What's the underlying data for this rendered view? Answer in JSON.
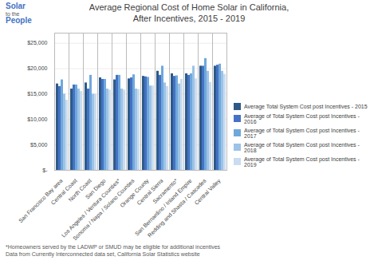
{
  "chart_data": {
    "type": "bar",
    "title": "Average Regional Cost of Home Solar in California,\nAfter Incentives, 2015 - 2019",
    "categories": [
      "San Francisco Bay area",
      "Central Coast",
      "North Coast",
      "San Diego",
      "Los Angeles / Ventura Counties*",
      "Sonoma / Napa / Solano Counties",
      "Orange County",
      "Central Sierra",
      "Sacramento*",
      "San Bernardino / Inland Empire",
      "Redding and Shasta / Cascades",
      "Central Valley"
    ],
    "series": [
      {
        "name": "Average Total System Cost post Incentives - 2015",
        "color": "#2E5A87",
        "values": [
          17000,
          16000,
          17200,
          18200,
          17800,
          18000,
          18500,
          19500,
          19000,
          19000,
          20500,
          20500
        ]
      },
      {
        "name": "Average of Total System Cost post Incentives - 2016",
        "color": "#4472C4",
        "values": [
          16500,
          16800,
          16000,
          17900,
          18700,
          18200,
          18400,
          18700,
          18500,
          18700,
          20500,
          20700
        ]
      },
      {
        "name": "Average of Total System Cost post Incentives - 2017",
        "color": "#6FA8DC",
        "values": [
          17800,
          16800,
          18700,
          17900,
          18700,
          18800,
          18300,
          20500,
          18600,
          19000,
          22000,
          20900
        ]
      },
      {
        "name": "Average of Total System Cost post Incentives - 2018",
        "color": "#9DC3E6",
        "values": [
          15000,
          16000,
          15000,
          16000,
          16000,
          16000,
          16600,
          17200,
          17000,
          20500,
          19500,
          19500
        ]
      },
      {
        "name": "Average of Total System Cost post Incentives - 2019",
        "color": "#C9DCF0",
        "values": [
          13800,
          15500,
          15000,
          15800,
          15800,
          15900,
          16600,
          16500,
          17900,
          18000,
          17300,
          18900
        ]
      }
    ],
    "ylim": [
      0,
      27000
    ],
    "yticks": [
      {
        "value": 0,
        "label": "$-"
      },
      {
        "value": 5000,
        "label": "$5,000"
      },
      {
        "value": 10000,
        "label": "$10,000"
      },
      {
        "value": 15000,
        "label": "$15,000"
      },
      {
        "value": 20000,
        "label": "$20,000"
      },
      {
        "value": 25000,
        "label": "$25,000"
      }
    ],
    "grid": true,
    "legend": "right",
    "annotations": [
      "Solar",
      "to the",
      "People",
      "*Homeowners served by the LADWP or SMUD may be eligible for additional incentives",
      "Data from Currently Interconnected data set, California Solar Statistics website"
    ]
  }
}
